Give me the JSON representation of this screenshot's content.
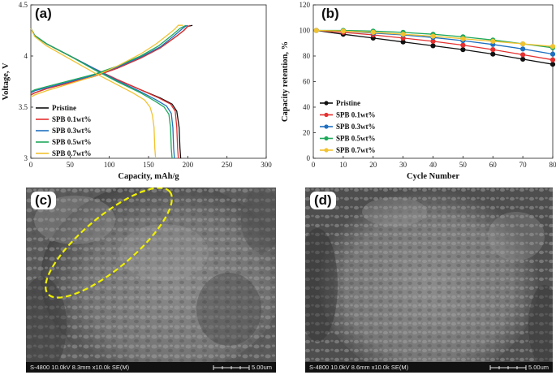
{
  "panels": {
    "a": {
      "label": "(a)"
    },
    "b": {
      "label": "(b)"
    },
    "c": {
      "label": "(c)",
      "sem_info": "S-4800 10.0kV 8.3mm x10.0k SE(M)",
      "scale_label": "5.00um"
    },
    "d": {
      "label": "(d)",
      "sem_info": "S-4800 10.0kV 8.6mm x10.0k SE(M)",
      "scale_label": "5.00um"
    }
  },
  "colors": {
    "Pristine": "#111111",
    "SPB 0.1wt%": "#e53030",
    "SPB 0.3wt%": "#1f6fc0",
    "SPB 0.5wt%": "#1fa85a",
    "SPB 0.7wt%": "#f2c230",
    "highlight_ellipse": "#f0f000"
  },
  "chart_data": [
    {
      "id": "a",
      "type": "line",
      "xlabel": "Capacity, mAh/g",
      "ylabel": "Voltage, V",
      "xlim": [
        0,
        300
      ],
      "ylim": [
        3,
        4.5
      ],
      "xticks": [
        0,
        50,
        100,
        150,
        200,
        250,
        300
      ],
      "yticks": [
        3,
        3.5,
        4,
        4.5
      ],
      "grid": false,
      "legend": "bottom-left",
      "series": [
        {
          "name": "Pristine",
          "charge": {
            "x": [
              0,
              5,
              20,
              50,
              80,
              110,
              140,
              165,
              185,
              195,
              200,
              206
            ],
            "y": [
              3.62,
              3.64,
              3.68,
              3.74,
              3.8,
              3.88,
              3.98,
              4.08,
              4.19,
              4.25,
              4.29,
              4.3
            ]
          },
          "discharge": {
            "x": [
              0,
              5,
              20,
              50,
              80,
              110,
              140,
              165,
              180,
              186,
              189,
              190,
              191
            ],
            "y": [
              4.27,
              4.2,
              4.12,
              4.0,
              3.88,
              3.77,
              3.67,
              3.59,
              3.53,
              3.46,
              3.3,
              3.1,
              3.0
            ]
          }
        },
        {
          "name": "SPB 0.1wt%",
          "charge": {
            "x": [
              0,
              5,
              20,
              50,
              80,
              110,
              140,
              165,
              185,
              195,
              200,
              203
            ],
            "y": [
              3.62,
              3.64,
              3.68,
              3.74,
              3.8,
              3.88,
              3.98,
              4.08,
              4.19,
              4.25,
              4.29,
              4.3
            ]
          },
          "discharge": {
            "x": [
              0,
              5,
              20,
              50,
              80,
              110,
              140,
              163,
              178,
              184,
              186,
              187,
              188
            ],
            "y": [
              4.27,
              4.2,
              4.12,
              4.0,
              3.88,
              3.77,
              3.67,
              3.59,
              3.53,
              3.46,
              3.3,
              3.1,
              3.0
            ]
          }
        },
        {
          "name": "SPB 0.3wt%",
          "charge": {
            "x": [
              0,
              5,
              20,
              50,
              80,
              110,
              140,
              165,
              183,
              192,
              197,
              200
            ],
            "y": [
              3.64,
              3.66,
              3.69,
              3.75,
              3.81,
              3.89,
              3.99,
              4.09,
              4.2,
              4.26,
              4.29,
              4.3
            ]
          },
          "discharge": {
            "x": [
              0,
              5,
              20,
              50,
              80,
              110,
              140,
              160,
              173,
              179,
              181,
              182,
              183
            ],
            "y": [
              4.27,
              4.2,
              4.12,
              4.0,
              3.88,
              3.76,
              3.65,
              3.57,
              3.51,
              3.44,
              3.3,
              3.1,
              3.0
            ]
          }
        },
        {
          "name": "SPB 0.5wt%",
          "charge": {
            "x": [
              0,
              5,
              20,
              50,
              80,
              110,
              140,
              163,
              181,
              190,
              195,
              198
            ],
            "y": [
              3.65,
              3.67,
              3.7,
              3.76,
              3.82,
              3.9,
              4.0,
              4.1,
              4.21,
              4.27,
              4.29,
              4.3
            ]
          },
          "discharge": {
            "x": [
              0,
              5,
              20,
              50,
              80,
              110,
              140,
              158,
              170,
              176,
              178,
              179,
              180
            ],
            "y": [
              4.27,
              4.2,
              4.12,
              4.0,
              3.87,
              3.75,
              3.64,
              3.56,
              3.5,
              3.43,
              3.3,
              3.1,
              3.0
            ]
          }
        },
        {
          "name": "SPB 0.7wt%",
          "charge": {
            "x": [
              0,
              5,
              20,
              50,
              80,
              110,
              140,
              160,
              175,
              183,
              188,
              194
            ],
            "y": [
              3.6,
              3.62,
              3.66,
              3.73,
              3.8,
              3.9,
              4.02,
              4.12,
              4.21,
              4.26,
              4.3,
              4.3
            ]
          },
          "discharge": {
            "x": [
              0,
              5,
              20,
              50,
              80,
              110,
              130,
              145,
              152,
              155,
              157,
              158,
              159
            ],
            "y": [
              4.27,
              4.19,
              4.1,
              3.97,
              3.84,
              3.72,
              3.64,
              3.57,
              3.5,
              3.42,
              3.3,
              3.1,
              3.0
            ]
          }
        }
      ]
    },
    {
      "id": "b",
      "type": "line",
      "xlabel": "Cycle Number",
      "ylabel": "Capacity retention, %",
      "xlim": [
        0,
        80
      ],
      "ylim": [
        0,
        120
      ],
      "xticks": [
        0,
        10,
        20,
        30,
        40,
        50,
        60,
        70,
        80
      ],
      "yticks": [
        0,
        20,
        40,
        60,
        80,
        100,
        120
      ],
      "grid": false,
      "legend": "bottom-left",
      "series": [
        {
          "name": "Pristine",
          "x": [
            1,
            10,
            20,
            30,
            40,
            50,
            60,
            70,
            80
          ],
          "y": [
            100,
            97,
            94,
            91,
            88,
            85,
            81.5,
            77.5,
            73.5
          ]
        },
        {
          "name": "SPB 0.1wt%",
          "x": [
            1,
            10,
            20,
            30,
            40,
            50,
            60,
            70,
            80
          ],
          "y": [
            100,
            98.5,
            96.5,
            94,
            91.5,
            88.5,
            85,
            81,
            77
          ]
        },
        {
          "name": "SPB 0.3wt%",
          "x": [
            1,
            10,
            20,
            30,
            40,
            50,
            60,
            70,
            80
          ],
          "y": [
            100,
            99.5,
            98,
            96.5,
            94.5,
            92,
            89,
            85.5,
            81.5
          ]
        },
        {
          "name": "SPB 0.5wt%",
          "x": [
            1,
            10,
            20,
            30,
            40,
            50,
            60,
            70,
            80
          ],
          "y": [
            100,
            100,
            99.5,
            98.5,
            97,
            95,
            92.5,
            89.5,
            86.5
          ]
        },
        {
          "name": "SPB 0.7wt%",
          "x": [
            1,
            10,
            20,
            30,
            40,
            50,
            60,
            70,
            80
          ],
          "y": [
            100,
            99.5,
            98.5,
            97,
            95.5,
            93.5,
            91.5,
            89.5,
            87.5
          ]
        }
      ]
    }
  ]
}
